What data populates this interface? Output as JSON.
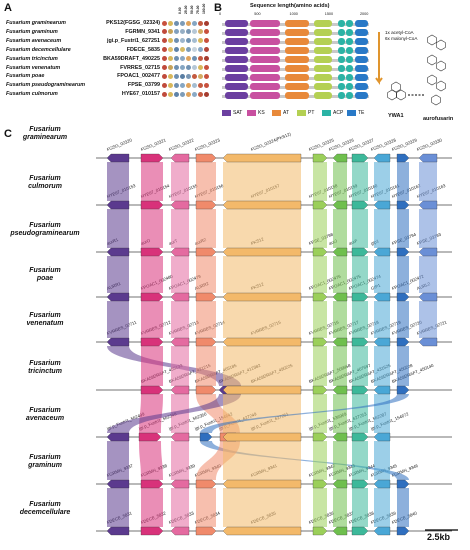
{
  "panel_labels": {
    "a": "A",
    "b": "B",
    "c": "C"
  },
  "panel_a": {
    "columns": [
      "0.00",
      "25.00",
      "50.00",
      "75.00",
      "100.00"
    ],
    "rows": [
      {
        "species": "Fusarium graminearum",
        "accession": "PKS12(FGSG_02324)",
        "dots": [
          "#c8513e",
          "#d8b85c",
          "#6f90b0",
          "#7d9cb8",
          "#e0a35b",
          "#86a6c2",
          "#c45a40",
          "#a53c2f"
        ]
      },
      {
        "species": "Fusarium graminum",
        "accession": "FGRMN_9341",
        "dots": [
          "#c04a3c",
          "#c6a35a",
          "#82a0bd",
          "#96afc5",
          "#7a97b4",
          "#b5c7d6",
          "#d3ab64",
          "#c8513e"
        ]
      },
      {
        "species": "Fusarium avenaceum",
        "accession": "jgi.p_Fustri1_627251",
        "dots": [
          "#c04a3c",
          "#d8b85c",
          "#6f90b0",
          "#9db6cc",
          "#7293b3",
          "#a5bdd1",
          "#d8b85c",
          "#c8513e"
        ]
      },
      {
        "species": "Fusarium decemcellulare",
        "accession": "FDECE_5835",
        "dots": [
          "#c04a3c",
          "#e1c06a",
          "#5f83a8",
          "#d7ba63",
          "#7d9cb8",
          "#c7d3dd",
          "#8aa9c5",
          "#b24638"
        ]
      },
      {
        "species": "Fusarium tricinctum",
        "accession": "BKA59DRAFT_490225",
        "dots": [
          "#c04a3c",
          "#d8b85c",
          "#6f90b0",
          "#8ca7c0",
          "#e0a35b",
          "#6f90b0",
          "#c45a40",
          "#a53c2f"
        ]
      },
      {
        "species": "Fusarium venenatum",
        "accession": "FVRRES_02715",
        "dots": [
          "#c04a3c",
          "#c6a35a",
          "#6f90b0",
          "#86a6c2",
          "#7293b3",
          "#b5c7d6",
          "#d8b85c",
          "#c8513e"
        ]
      },
      {
        "species": "Fusarium poae",
        "accession": "FPOAC1_002477",
        "dots": [
          "#c04a3c",
          "#d8b85c",
          "#6f90b0",
          "#5a7ea3",
          "#7a97b4",
          "#c45a40",
          "#d3ab64",
          "#c8513e"
        ]
      },
      {
        "species": "Fusarium pseudograminearum",
        "accession": "FPSE_03799",
        "dots": [
          "#c04a3c",
          "#d8b85c",
          "#6f90b0",
          "#86a6c2",
          "#e0a35b",
          "#a5bdd1",
          "#c45a40",
          "#c8513e"
        ]
      },
      {
        "species": "Fusarium culmorum",
        "accession": "HYE67_010157",
        "dots": [
          "#c04a3c",
          "#d8b85c",
          "#5f83a8",
          "#7d9cb8",
          "#e0a35b",
          "#8aa9c5",
          "#c45a40",
          "#a53c2f"
        ]
      }
    ]
  },
  "panel_b": {
    "axis_title": "Sequence length(amino acids)",
    "ticks": [
      "0",
      "500",
      "1000",
      "1500",
      "2000"
    ],
    "tick_values": [
      0,
      500,
      1000,
      1500,
      2000
    ],
    "rows": 9,
    "domains": [
      {
        "name": "SAT",
        "start": 40,
        "end": 370,
        "color": "#6b3fa0"
      },
      {
        "name": "KS",
        "start": 400,
        "end": 820,
        "color": "#c850a0"
      },
      {
        "name": "AT",
        "start": 900,
        "end": 1230,
        "color": "#e8893a"
      },
      {
        "name": "PT",
        "start": 1300,
        "end": 1560,
        "color": "#b4d053"
      },
      {
        "name": "ACP",
        "start": 1640,
        "end": 1740,
        "color": "#2bb3a5"
      },
      {
        "name": "ACP",
        "start": 1760,
        "end": 1860,
        "color": "#2bb3a5"
      },
      {
        "name": "TE",
        "start": 1890,
        "end": 2070,
        "color": "#2979c7"
      }
    ],
    "legend": [
      {
        "name": "SAT",
        "color": "#6b3fa0"
      },
      {
        "name": "KS",
        "color": "#c850a0"
      },
      {
        "name": "AT",
        "color": "#e8893a"
      },
      {
        "name": "PT",
        "color": "#b4d053"
      },
      {
        "name": "ACP",
        "color": "#2bb3a5"
      },
      {
        "name": "TE",
        "color": "#2979c7"
      }
    ],
    "pathway_text": [
      "1x acetyl-CoA",
      "6x malonyl-CoA"
    ],
    "compound_1": "YWA1",
    "compound_2": "aurofusarin"
  },
  "panel_c": {
    "scale_bar": "2.5kb",
    "species": [
      {
        "line1": "Fusarium",
        "line2": "graminearum"
      },
      {
        "line1": "Fusarium",
        "line2": "culmorum"
      },
      {
        "line1": "Fusarium",
        "line2": "pseudograminearum"
      },
      {
        "line1": "Fusarium",
        "line2": "poae"
      },
      {
        "line1": "Fusarium",
        "line2": "venenatum"
      },
      {
        "line1": "Fusarium",
        "line2": "tricinctum"
      },
      {
        "line1": "Fusarium",
        "line2": "avenaceum"
      },
      {
        "line1": "Fusarium",
        "line2": "graminum"
      },
      {
        "line1": "Fusarium",
        "line2": "decemcellulare"
      }
    ],
    "gene_labels": [
      [
        "FGSG_02320",
        "FGSG_02321",
        "FGSG_02322",
        "FGSG_02323",
        "FGSG_02324(PKS12)",
        "FGSG_02325",
        "FGSG_02326",
        "FGSG_02327",
        "FGSG_02328",
        "FGSG_02329",
        "FGSG_02330"
      ],
      [
        "HYE67_010153",
        "HYE67_010154",
        "HYE67_010155",
        "HYE67_010156",
        "HYE67_010157",
        "HYE67_010158",
        "HYE67_010159",
        "HYE67_010160",
        "HYE67_010161",
        "HYE67_010162",
        "HYE67_010163"
      ],
      [
        "aurR1",
        "aurO",
        "aurT",
        "aurR2",
        "PKS12",
        "FPSE_03798",
        "aurJ",
        "aurF",
        "gip1",
        "FPSE_03794",
        "FPSE_03793"
      ],
      [
        "AURR1",
        "FPOAC1_002480",
        "FPOAC1_002479",
        "AURR2",
        "PKS12",
        "FPOAC1_002476",
        "FPOAC1_002475",
        "FPOAC1_002474",
        "GIP1",
        "FPOAC1_002472",
        "AURL2"
      ],
      [
        "FVRRES_02711",
        "FVRRES_02712",
        "FVRRES_02713",
        "FVRRES_02714",
        "FVRRES_02715",
        "FVRRES_02716",
        "FVRRES_02717",
        "FVRRES_02718",
        "FVRRES_02719",
        "FVRRES_02720",
        "FVRRES_02721"
      ],
      [
        "BKA59DRAFT_455133",
        "BKA59DRAFT_421215",
        "BKA59DRAFT_465185",
        "BKA59DRAFT_412382",
        "BKA59DRAFT_490225",
        "BKA59DRAFT_509958",
        "BKA59DRAFT_467697",
        "BKA59DRAFT_431525",
        "BKA59DRAFT_450228",
        "BKA59DRAFT_450140"
      ],
      [
        "jgi.p_Fustri1_562499",
        "jgi.p_Fustri1_562348",
        "jgi.p_Fustri1_562350",
        "jgi.p_Fustri1_154642",
        "jgi.p_Fustri1_627249",
        "jgi.p_Fustri1_627251",
        "jgi.p_Fustri1_536969",
        "jgi.p_Fustri1_627253",
        "jgi.p_Fustri1_562287",
        "jgi.p_Fustri1_154672"
      ],
      [
        "FGRMN_9337",
        "FGRMN_9338",
        "FGRMN_9339",
        "FGRMN_9340",
        "FGRMN_9341",
        "FGRMN_9342",
        "FGRMN_9343",
        "FGRMN_9344",
        "FGRMN_9345",
        "FGRMN_9346"
      ],
      [
        "FDECE_5831",
        "FDECE_5832",
        "FDECE_5833",
        "FDECE_5834",
        "FDECE_5835",
        "FDECE_5836",
        "FDECE_5837",
        "FDECE_5838",
        "FDECE_5839",
        "FDECE_5840"
      ]
    ],
    "gene_colors": [
      "#5b3a8e",
      "#d8327a",
      "#e46aa0",
      "#f08a6b",
      "#f3b96a",
      "#9bcf5a",
      "#6fbf4e",
      "#3db89a",
      "#4aa7d6",
      "#2f6fbf",
      "#6a8fd6"
    ]
  }
}
